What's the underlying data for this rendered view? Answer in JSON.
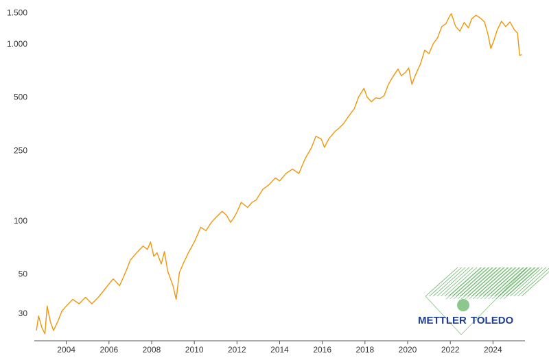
{
  "chart_data": {
    "type": "line",
    "title": "",
    "xlabel": "",
    "ylabel": "",
    "yscale": "log",
    "ylim": [
      21,
      1560
    ],
    "xlim": [
      2002.5,
      2025.5
    ],
    "grid": false,
    "legend": "none",
    "line_color": "#f0960a",
    "y_ticks": [
      {
        "value": 30,
        "label": "30"
      },
      {
        "value": 50,
        "label": "50"
      },
      {
        "value": 100,
        "label": "100"
      },
      {
        "value": 250,
        "label": "250"
      },
      {
        "value": 500,
        "label": "500"
      },
      {
        "value": 1000,
        "label": "1.000"
      },
      {
        "value": 1500,
        "label": "1.500"
      }
    ],
    "x_ticks": [
      {
        "value": 2004,
        "label": "2004"
      },
      {
        "value": 2006,
        "label": "2006"
      },
      {
        "value": 2008,
        "label": "2008"
      },
      {
        "value": 2010,
        "label": "2010"
      },
      {
        "value": 2012,
        "label": "2012"
      },
      {
        "value": 2014,
        "label": "2014"
      },
      {
        "value": 2016,
        "label": "2016"
      },
      {
        "value": 2018,
        "label": "2018"
      },
      {
        "value": 2020,
        "label": "2020"
      },
      {
        "value": 2022,
        "label": "2022"
      },
      {
        "value": 2024,
        "label": "2024"
      }
    ],
    "series": [
      {
        "points": [
          [
            2002.6,
            24
          ],
          [
            2002.7,
            29
          ],
          [
            2002.85,
            25
          ],
          [
            2003.0,
            23
          ],
          [
            2003.1,
            33
          ],
          [
            2003.25,
            27
          ],
          [
            2003.4,
            24
          ],
          [
            2003.6,
            27
          ],
          [
            2003.8,
            31
          ],
          [
            2004.0,
            33
          ],
          [
            2004.3,
            36
          ],
          [
            2004.6,
            34
          ],
          [
            2004.9,
            37
          ],
          [
            2005.2,
            34
          ],
          [
            2005.5,
            37
          ],
          [
            2005.8,
            41
          ],
          [
            2006.0,
            44
          ],
          [
            2006.2,
            47
          ],
          [
            2006.5,
            43
          ],
          [
            2006.8,
            52
          ],
          [
            2007.0,
            60
          ],
          [
            2007.3,
            66
          ],
          [
            2007.6,
            72
          ],
          [
            2007.8,
            69
          ],
          [
            2007.95,
            76
          ],
          [
            2008.1,
            63
          ],
          [
            2008.25,
            66
          ],
          [
            2008.45,
            57
          ],
          [
            2008.6,
            67
          ],
          [
            2008.75,
            52
          ],
          [
            2009.0,
            43
          ],
          [
            2009.15,
            36
          ],
          [
            2009.3,
            51
          ],
          [
            2009.5,
            58
          ],
          [
            2009.75,
            67
          ],
          [
            2010.0,
            76
          ],
          [
            2010.3,
            92
          ],
          [
            2010.55,
            88
          ],
          [
            2010.8,
            98
          ],
          [
            2011.0,
            104
          ],
          [
            2011.3,
            113
          ],
          [
            2011.5,
            108
          ],
          [
            2011.7,
            98
          ],
          [
            2011.85,
            104
          ],
          [
            2012.0,
            112
          ],
          [
            2012.2,
            127
          ],
          [
            2012.5,
            119
          ],
          [
            2012.7,
            127
          ],
          [
            2012.9,
            131
          ],
          [
            2013.2,
            150
          ],
          [
            2013.5,
            160
          ],
          [
            2013.8,
            175
          ],
          [
            2014.0,
            168
          ],
          [
            2014.3,
            185
          ],
          [
            2014.6,
            196
          ],
          [
            2014.9,
            185
          ],
          [
            2015.2,
            225
          ],
          [
            2015.5,
            260
          ],
          [
            2015.7,
            300
          ],
          [
            2015.95,
            290
          ],
          [
            2016.1,
            260
          ],
          [
            2016.3,
            290
          ],
          [
            2016.6,
            320
          ],
          [
            2016.8,
            335
          ],
          [
            2017.0,
            355
          ],
          [
            2017.2,
            385
          ],
          [
            2017.5,
            430
          ],
          [
            2017.7,
            500
          ],
          [
            2017.95,
            560
          ],
          [
            2018.1,
            500
          ],
          [
            2018.3,
            470
          ],
          [
            2018.5,
            495
          ],
          [
            2018.7,
            490
          ],
          [
            2018.9,
            510
          ],
          [
            2019.1,
            590
          ],
          [
            2019.3,
            650
          ],
          [
            2019.55,
            720
          ],
          [
            2019.7,
            660
          ],
          [
            2019.9,
            690
          ],
          [
            2020.05,
            730
          ],
          [
            2020.2,
            590
          ],
          [
            2020.35,
            660
          ],
          [
            2020.6,
            770
          ],
          [
            2020.8,
            920
          ],
          [
            2021.0,
            880
          ],
          [
            2021.2,
            1000
          ],
          [
            2021.4,
            1080
          ],
          [
            2021.6,
            1250
          ],
          [
            2021.8,
            1300
          ],
          [
            2021.95,
            1420
          ],
          [
            2022.05,
            1480
          ],
          [
            2022.25,
            1250
          ],
          [
            2022.45,
            1180
          ],
          [
            2022.65,
            1320
          ],
          [
            2022.85,
            1230
          ],
          [
            2023.0,
            1380
          ],
          [
            2023.2,
            1450
          ],
          [
            2023.4,
            1400
          ],
          [
            2023.6,
            1330
          ],
          [
            2023.75,
            1150
          ],
          [
            2023.9,
            940
          ],
          [
            2024.05,
            1050
          ],
          [
            2024.2,
            1200
          ],
          [
            2024.4,
            1340
          ],
          [
            2024.6,
            1250
          ],
          [
            2024.8,
            1330
          ],
          [
            2025.0,
            1200
          ],
          [
            2025.15,
            1150
          ],
          [
            2025.25,
            860
          ],
          [
            2025.35,
            870
          ]
        ]
      }
    ]
  },
  "logo": {
    "word_left": "METTLER",
    "word_right": "TOLEDO",
    "color_text": "#1f3d8f",
    "color_lines": "#2e9a2e"
  }
}
